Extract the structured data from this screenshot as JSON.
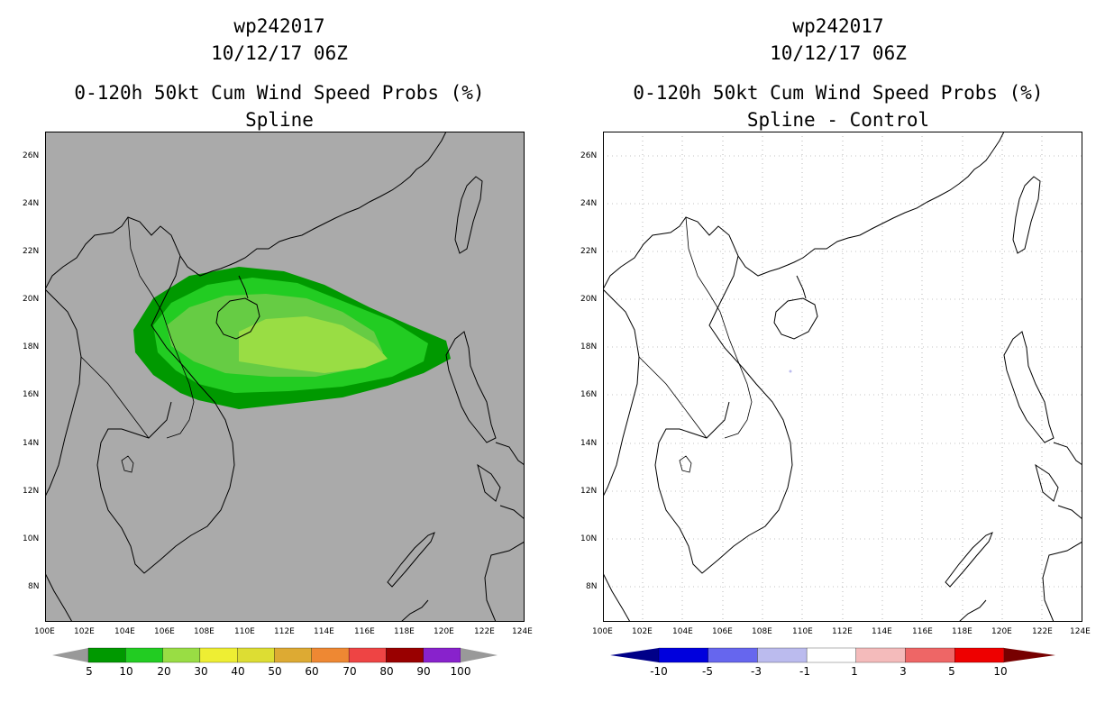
{
  "left_panel": {
    "storm_id": "wp242017",
    "datetime": "10/12/17 06Z",
    "product": "0-120h 50kt Cum Wind Speed Probs (%)",
    "method": "Spline",
    "colorbar_labels": [
      "5",
      "10",
      "20",
      "30",
      "40",
      "50",
      "60",
      "70",
      "80",
      "90",
      "100"
    ],
    "colorbar_colors": [
      "#009900",
      "#22cc22",
      "#99dd44",
      "#eeee33",
      "#dddd33",
      "#ddaa33",
      "#ee8833",
      "#ee4444",
      "#990000",
      "#8822cc"
    ],
    "background_color": "#aaaaaa"
  },
  "right_panel": {
    "storm_id": "wp242017",
    "datetime": "10/12/17 06Z",
    "product": "0-120h 50kt Cum Wind Speed Probs (%)",
    "method": "Spline - Control",
    "colorbar_labels": [
      "-10",
      "-5",
      "-3",
      "-1",
      "1",
      "3",
      "5",
      "10"
    ],
    "colorbar_colors": [
      "#0000dd",
      "#6666ee",
      "#bbbbee",
      "#ffffff",
      "#f4bbbb",
      "#ee6666",
      "#ee0000"
    ],
    "background_color": "#ffffff"
  },
  "axes": {
    "lat_labels": [
      "26N",
      "24N",
      "22N",
      "20N",
      "18N",
      "16N",
      "14N",
      "12N",
      "10N",
      "8N"
    ],
    "lon_labels": [
      "100E",
      "102E",
      "104E",
      "106E",
      "108E",
      "110E",
      "112E",
      "114E",
      "116E",
      "118E",
      "120E",
      "122E",
      "124E"
    ]
  }
}
